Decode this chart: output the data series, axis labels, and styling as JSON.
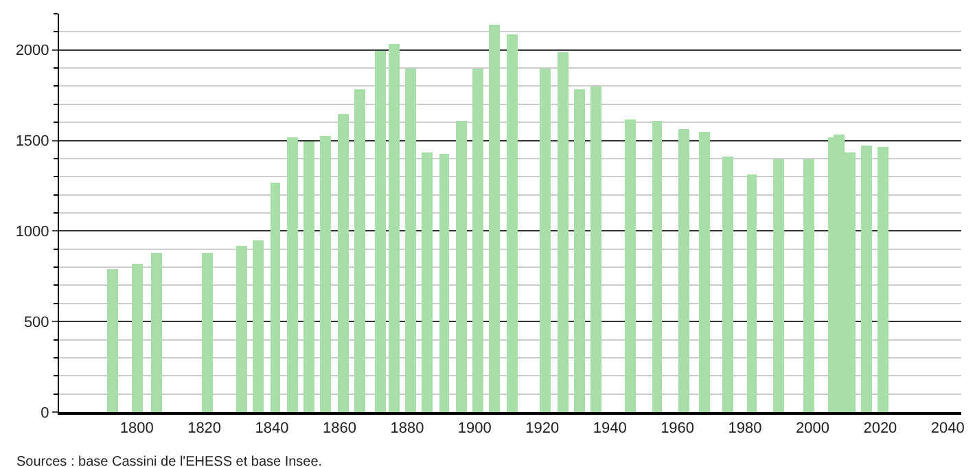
{
  "chart_data": {
    "type": "bar",
    "x": [
      1793,
      1800,
      1806,
      1821,
      1831,
      1836,
      1841,
      1846,
      1851,
      1856,
      1861,
      1866,
      1872,
      1876,
      1881,
      1886,
      1891,
      1896,
      1901,
      1906,
      1911,
      1921,
      1926,
      1931,
      1936,
      1946,
      1954,
      1962,
      1968,
      1975,
      1982,
      1990,
      1999,
      2006,
      2008,
      2011,
      2016,
      2021
    ],
    "values": [
      792,
      822,
      883,
      881,
      921,
      952,
      1269,
      1515,
      1497,
      1528,
      1645,
      1782,
      1997,
      2033,
      1898,
      1431,
      1424,
      1607,
      1898,
      2140,
      2086,
      1898,
      1985,
      1782,
      1799,
      1619,
      1607,
      1566,
      1546,
      1409,
      1310,
      1396,
      1398,
      1515,
      1530,
      1431,
      1470,
      1464
    ],
    "color": "#a8dfa8",
    "xlim": [
      1777,
      2044
    ],
    "xticks": [
      1800,
      1820,
      1840,
      1860,
      1880,
      1900,
      1920,
      1940,
      1960,
      1980,
      2000,
      2020,
      2040
    ],
    "ylim": [
      0,
      2200
    ],
    "yticks": [
      0,
      500,
      1000,
      1500,
      2000
    ],
    "grid": "y",
    "legend": false,
    "annotations": [
      "Sources : base Cassini de l'EHESS et base Insee."
    ]
  }
}
